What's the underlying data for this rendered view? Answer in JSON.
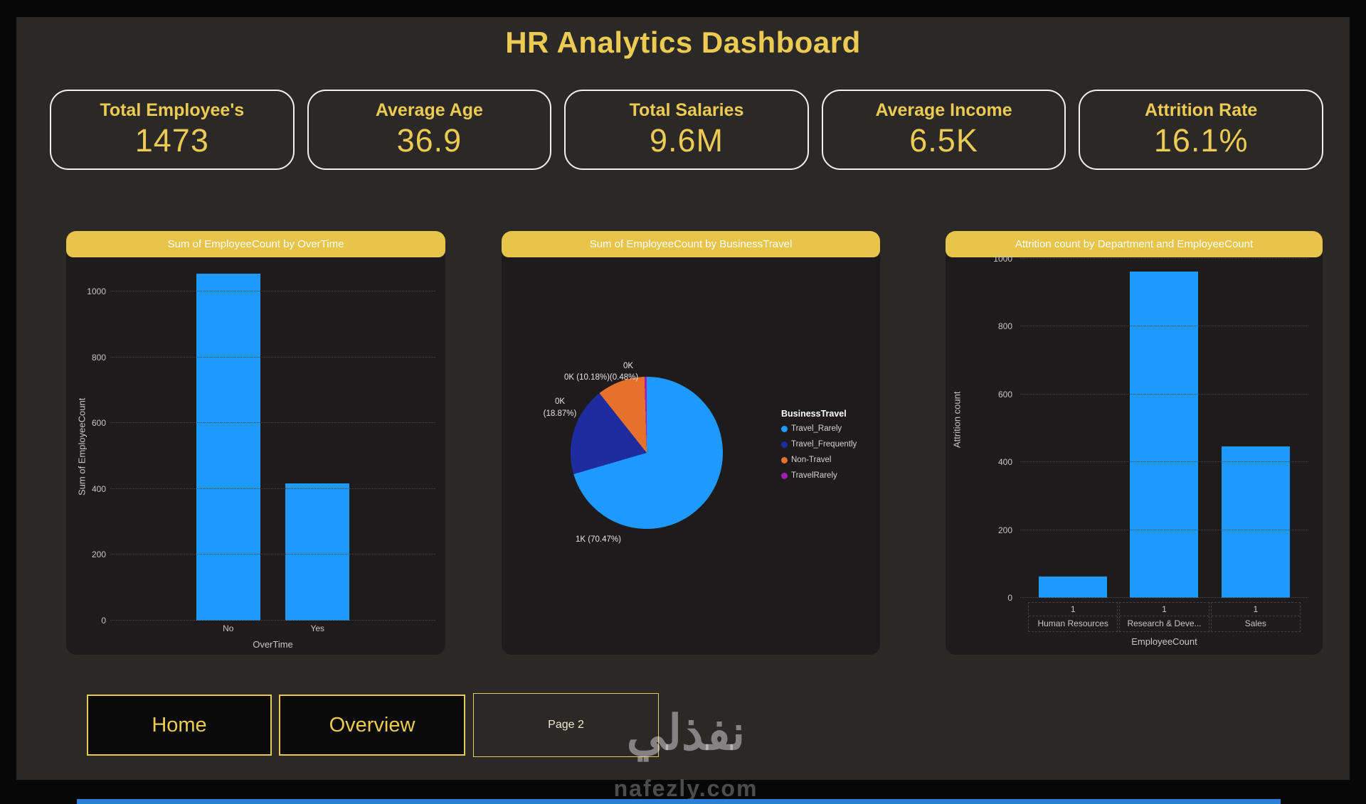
{
  "page": {
    "title": "HR Analytics Dashboard",
    "watermark_text": "نفذلي",
    "watermark_site": "nafezly.com"
  },
  "colors": {
    "header_gold": "#E9C44B",
    "gold_text": "#EDCB52",
    "bar_blue": "#1E9AFF",
    "canvas_bg": "#2B2828",
    "card_bg": "#1D1B1B"
  },
  "kpis": [
    {
      "label": "Total Employee's",
      "value": "1473"
    },
    {
      "label": "Average Age",
      "value": "36.9"
    },
    {
      "label": "Total Salaries",
      "value": "9.6M"
    },
    {
      "label": "Average Income",
      "value": "6.5K"
    },
    {
      "label": "Attrition Rate",
      "value": "16.1%"
    }
  ],
  "nav": [
    {
      "label": "Home"
    },
    {
      "label": "Overview"
    },
    {
      "label": "Page 2"
    }
  ],
  "chart_data": [
    {
      "type": "bar",
      "title": "Sum of EmployeeCount by OverTime",
      "categories": [
        "No",
        "Yes"
      ],
      "values": [
        1054,
        416
      ],
      "xlabel": "OverTime",
      "ylabel": "Sum of EmployeeCount",
      "yticks": [
        0,
        200,
        400,
        600,
        800,
        1000
      ],
      "ylim": [
        0,
        1058
      ],
      "grid": "dotted-horizontal",
      "bar_color": "#1E9AFF"
    },
    {
      "type": "pie",
      "title": "Sum of EmployeeCount by BusinessTravel",
      "legend_title": "BusinessTravel",
      "legend_position": "right",
      "slices": [
        {
          "name": "Travel_Rarely",
          "pct": 70.47,
          "value_label": "1K",
          "color": "#1E9AFF"
        },
        {
          "name": "Travel_Frequently",
          "pct": 18.87,
          "value_label": "0K",
          "color": "#1F2CA0"
        },
        {
          "name": "Non-Travel",
          "pct": 10.18,
          "value_label": "0K",
          "color": "#E8702D"
        },
        {
          "name": "TravelRarely",
          "pct": 0.48,
          "value_label": "0K",
          "color": "#A61CB0"
        }
      ],
      "callouts": {
        "top": "0K",
        "upper": "0K (10.18%)(0.48%)",
        "left_line1": "0K",
        "left_line2": "(18.87%)",
        "bottom": "1K (70.47%)"
      }
    },
    {
      "type": "bar",
      "title": "Attrition count by Department and EmployeeCount",
      "categories": [
        "Human Resources",
        "Research & Deve...",
        "Sales"
      ],
      "category_counts": [
        "1",
        "1",
        "1"
      ],
      "values": [
        63,
        961,
        446
      ],
      "xlabel": "EmployeeCount",
      "ylabel": "Attrition count",
      "yticks": [
        0,
        200,
        400,
        600,
        800,
        1000
      ],
      "ylim": [
        0,
        1050
      ],
      "grid": "dotted-horizontal",
      "bar_color": "#1E9AFF"
    }
  ]
}
